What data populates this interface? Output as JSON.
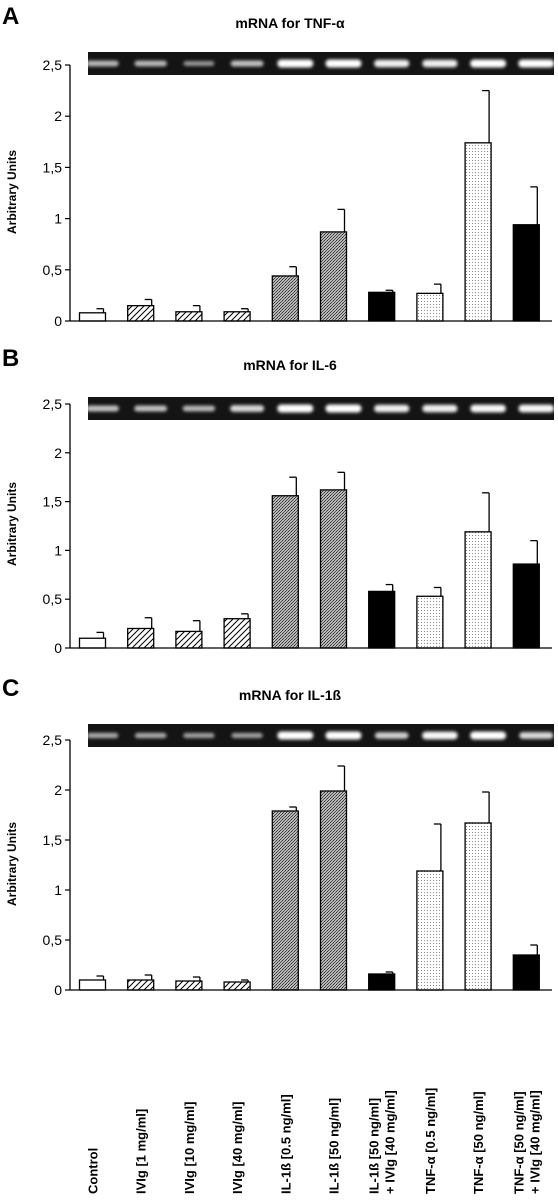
{
  "figure": {
    "category_labels": [
      [
        "Control"
      ],
      [
        "IVIg [1 mg/ml]"
      ],
      [
        "IVIg [10 mg/ml]"
      ],
      [
        "IVIg [40 mg/ml]"
      ],
      [
        "IL-1ß [0.5 ng/ml]"
      ],
      [
        "IL-1ß [50 ng/ml]"
      ],
      [
        "IL-1ß [50 ng/ml]",
        "+ IVIg [40 mg/ml]"
      ],
      [
        "TNF-α [0.5 ng/ml]"
      ],
      [
        "TNF-α [50 ng/ml]"
      ],
      [
        "TNF-α [50 ng/ml]",
        "+ IVIg [40 mg/ml]"
      ]
    ],
    "fill_patterns": [
      "white",
      "hatch",
      "hatch",
      "hatch",
      "crosshatch",
      "crosshatch",
      "black",
      "dots",
      "dots",
      "black"
    ],
    "colors": {
      "bar_edge": "#000000",
      "gel_background": "#141414",
      "band": "#ffffff"
    }
  },
  "chart_data": [
    {
      "type": "bar",
      "panel": "A",
      "title": "mRNA for TNF-α",
      "ylabel": "Arbitrary Units",
      "ylim": [
        0,
        2.5
      ],
      "yticks": [
        "0",
        "0,5",
        "1",
        "1,5",
        "2",
        "2,5"
      ],
      "categories": [
        "Control",
        "IVIg [1 mg/ml]",
        "IVIg [10 mg/ml]",
        "IVIg [40 mg/ml]",
        "IL-1ß [0.5 ng/ml]",
        "IL-1ß [50 ng/ml]",
        "IL-1ß [50 ng/ml] + IVIg [40 mg/ml]",
        "TNF-α [0.5 ng/ml]",
        "TNF-α [50 ng/ml]",
        "TNF-α [50 ng/ml] + IVIg [40 mg/ml]"
      ],
      "values": [
        0.08,
        0.15,
        0.09,
        0.09,
        0.44,
        0.87,
        0.28,
        0.27,
        1.74,
        0.94
      ],
      "errors": [
        0.04,
        0.06,
        0.06,
        0.03,
        0.09,
        0.22,
        0.02,
        0.09,
        0.51,
        0.37
      ],
      "gel_band_intensity": [
        0.55,
        0.55,
        0.35,
        0.6,
        1.0,
        1.0,
        0.9,
        0.9,
        1.0,
        1.0
      ]
    },
    {
      "type": "bar",
      "panel": "B",
      "title": "mRNA for IL-6",
      "ylabel": "Arbitrary Units",
      "ylim": [
        0,
        2.5
      ],
      "yticks": [
        "0",
        "0,5",
        "1",
        "1,5",
        "2",
        "2,5"
      ],
      "categories": [
        "Control",
        "IVIg [1 mg/ml]",
        "IVIg [10 mg/ml]",
        "IVIg [40 mg/ml]",
        "IL-1ß [0.5 ng/ml]",
        "IL-1ß [50 ng/ml]",
        "IL-1ß [50 ng/ml] + IVIg [40 mg/ml]",
        "TNF-α [0.5 ng/ml]",
        "TNF-α [50 ng/ml]",
        "TNF-α [50 ng/ml] + IVIg [40 mg/ml]"
      ],
      "values": [
        0.1,
        0.2,
        0.17,
        0.3,
        1.56,
        1.62,
        0.58,
        0.53,
        1.19,
        0.86
      ],
      "errors": [
        0.06,
        0.11,
        0.11,
        0.05,
        0.19,
        0.18,
        0.07,
        0.09,
        0.4,
        0.24
      ],
      "gel_band_intensity": [
        0.6,
        0.6,
        0.55,
        0.75,
        1.0,
        1.0,
        0.9,
        0.9,
        0.95,
        0.95
      ]
    },
    {
      "type": "bar",
      "panel": "C",
      "title": "mRNA for IL-1ß",
      "ylabel": "Arbitrary Units",
      "ylim": [
        0,
        2.5
      ],
      "yticks": [
        "0",
        "0,5",
        "1",
        "1,5",
        "2",
        "2,5"
      ],
      "categories": [
        "Control",
        "IVIg [1 mg/ml]",
        "IVIg [10 mg/ml]",
        "IVIg [40 mg/ml]",
        "IL-1ß [0.5 ng/ml]",
        "IL-1ß [50 ng/ml]",
        "IL-1ß [50 ng/ml] + IVIg [40 mg/ml]",
        "TNF-α [0.5 ng/ml]",
        "TNF-α [50 ng/ml]",
        "TNF-α [50 ng/ml] + IVIg [40 mg/ml]"
      ],
      "values": [
        0.1,
        0.1,
        0.09,
        0.08,
        1.79,
        1.99,
        0.16,
        1.19,
        1.67,
        0.35
      ],
      "errors": [
        0.04,
        0.05,
        0.04,
        0.02,
        0.04,
        0.25,
        0.02,
        0.47,
        0.31,
        0.1
      ],
      "gel_band_intensity": [
        0.45,
        0.45,
        0.4,
        0.4,
        1.0,
        1.0,
        0.7,
        0.95,
        1.0,
        0.75
      ]
    }
  ]
}
